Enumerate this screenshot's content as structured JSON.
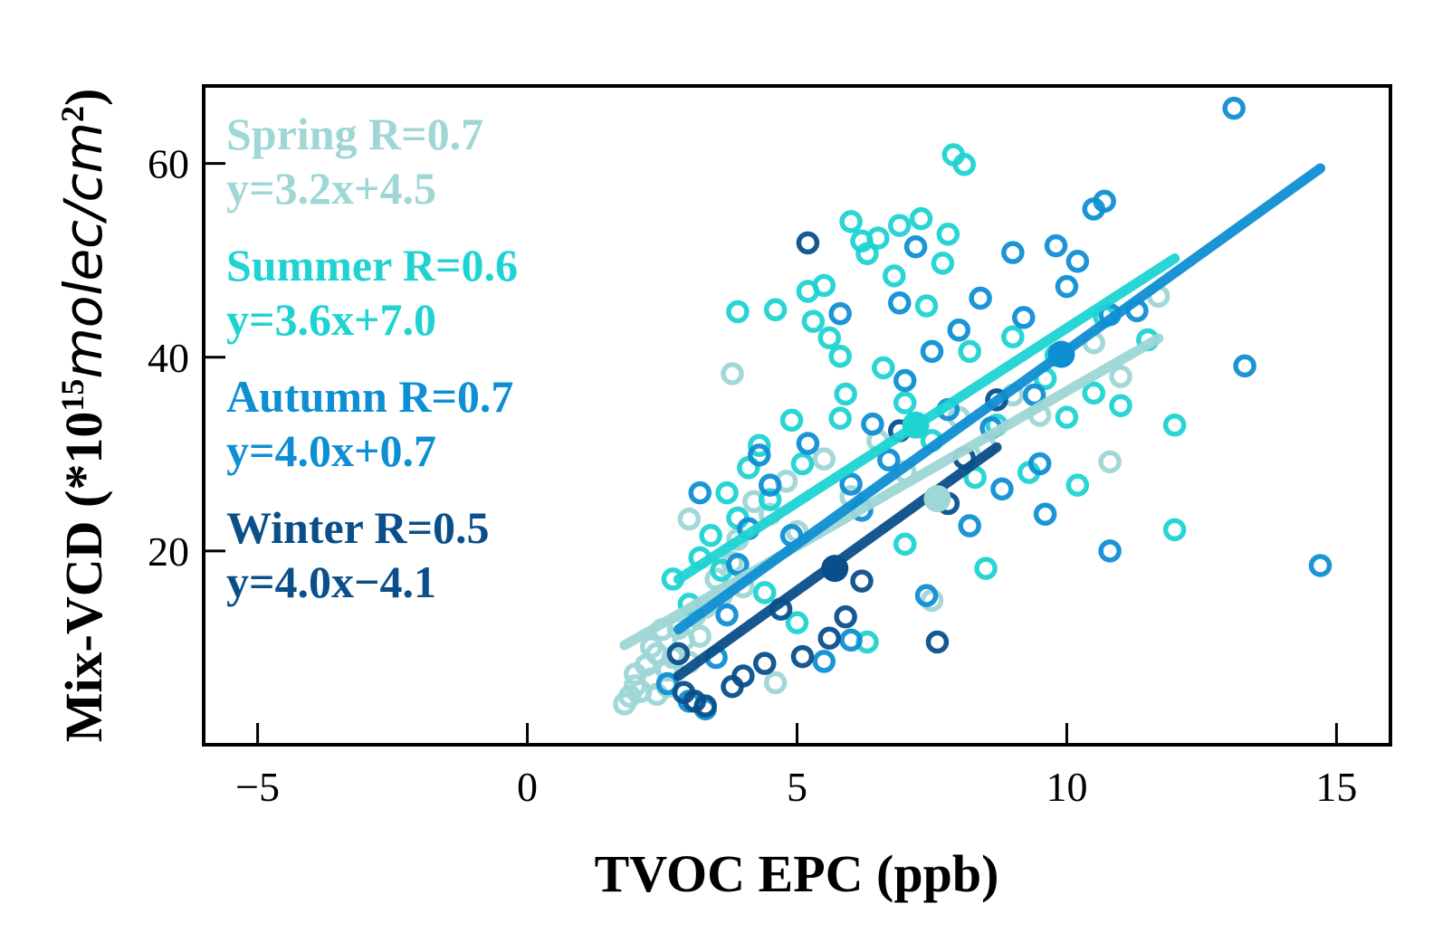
{
  "chart_data": {
    "type": "scatter",
    "title": "",
    "xlabel": "TVOC EPC (ppb)",
    "ylabel": {
      "prefix": "Mix-VCD (*10",
      "exponent": "15",
      "unit": "molec/cm",
      "unit_exponent": "2",
      "suffix": ")"
    },
    "xlim": [
      -6,
      16
    ],
    "ylim": [
      0,
      68
    ],
    "xticks": [
      -5,
      0,
      5,
      10,
      15
    ],
    "xtick_labels": [
      "−5",
      "0",
      "5",
      "10",
      "15"
    ],
    "yticks": [
      20,
      40,
      60
    ],
    "ytick_labels": [
      "20",
      "40",
      "60"
    ],
    "grid": false,
    "legend_position": "top-left",
    "series": [
      {
        "name": "Spring",
        "color": "#9fd6d6",
        "legend_line1": "Spring R=0.7",
        "legend_line2": "y=3.2x+4.5",
        "fit": {
          "slope": 3.2,
          "intercept": 4.5,
          "x_range": [
            1.8,
            11.7
          ]
        },
        "mean": [
          7.6,
          25.4
        ],
        "points": [
          [
            1.8,
            4.2
          ],
          [
            1.9,
            5.0
          ],
          [
            2.0,
            6.1
          ],
          [
            2.1,
            5.5
          ],
          [
            2.0,
            7.3
          ],
          [
            2.2,
            8.2
          ],
          [
            2.3,
            6.8
          ],
          [
            2.4,
            9.4
          ],
          [
            2.5,
            11.9
          ],
          [
            2.3,
            10.1
          ],
          [
            2.6,
            7.7
          ],
          [
            2.7,
            9.0
          ],
          [
            2.8,
            12.0
          ],
          [
            2.9,
            10.8
          ],
          [
            3.0,
            8.5
          ],
          [
            3.1,
            13.3
          ],
          [
            3.2,
            11.2
          ],
          [
            3.3,
            14.2
          ],
          [
            3.0,
            23.3
          ],
          [
            3.5,
            17.1
          ],
          [
            3.6,
            15.4
          ],
          [
            3.8,
            18.8
          ],
          [
            3.9,
            21.2
          ],
          [
            4.0,
            16.3
          ],
          [
            4.2,
            25.1
          ],
          [
            4.5,
            23.8
          ],
          [
            4.8,
            27.2
          ],
          [
            5.0,
            22.0
          ],
          [
            3.8,
            38.3
          ],
          [
            5.5,
            29.5
          ],
          [
            6.0,
            25.6
          ],
          [
            6.5,
            31.4
          ],
          [
            7.0,
            28.2
          ],
          [
            7.5,
            14.9
          ],
          [
            8.0,
            33.8
          ],
          [
            8.5,
            30.7
          ],
          [
            9.0,
            36.1
          ],
          [
            9.5,
            34.0
          ],
          [
            10.8,
            29.2
          ],
          [
            11.0,
            38.0
          ],
          [
            11.7,
            46.3
          ],
          [
            10.5,
            41.5
          ],
          [
            2.4,
            5.2
          ],
          [
            2.6,
            6.0
          ],
          [
            4.6,
            6.4
          ]
        ]
      },
      {
        "name": "Summer",
        "color": "#1fd3d3",
        "legend_line1": "Summer R=0.6",
        "legend_line2": "y=3.6x+7.0",
        "fit": {
          "slope": 3.6,
          "intercept": 7.0,
          "x_range": [
            2.8,
            12.0
          ]
        },
        "mean": [
          7.2,
          33.0
        ],
        "points": [
          [
            2.7,
            17.1
          ],
          [
            3.0,
            14.5
          ],
          [
            3.2,
            19.3
          ],
          [
            3.4,
            21.6
          ],
          [
            3.6,
            18.0
          ],
          [
            3.7,
            26.0
          ],
          [
            3.9,
            23.4
          ],
          [
            4.1,
            28.6
          ],
          [
            4.3,
            30.9
          ],
          [
            4.5,
            25.3
          ],
          [
            3.9,
            44.7
          ],
          [
            4.6,
            44.9
          ],
          [
            4.9,
            33.5
          ],
          [
            5.1,
            29.0
          ],
          [
            5.2,
            46.8
          ],
          [
            5.3,
            43.7
          ],
          [
            5.5,
            47.4
          ],
          [
            5.6,
            42.0
          ],
          [
            5.8,
            40.1
          ],
          [
            5.9,
            36.2
          ],
          [
            6.0,
            54.0
          ],
          [
            6.2,
            52.0
          ],
          [
            6.3,
            50.7
          ],
          [
            6.5,
            52.3
          ],
          [
            6.6,
            38.9
          ],
          [
            6.8,
            48.4
          ],
          [
            6.9,
            53.6
          ],
          [
            7.0,
            35.3
          ],
          [
            7.3,
            54.3
          ],
          [
            7.4,
            45.3
          ],
          [
            7.5,
            31.4
          ],
          [
            7.7,
            49.7
          ],
          [
            7.8,
            52.7
          ],
          [
            7.9,
            60.9
          ],
          [
            8.1,
            59.9
          ],
          [
            8.2,
            40.6
          ],
          [
            8.3,
            27.6
          ],
          [
            8.5,
            18.2
          ],
          [
            8.7,
            33.0
          ],
          [
            9.0,
            42.1
          ],
          [
            9.3,
            28.1
          ],
          [
            9.6,
            37.8
          ],
          [
            9.8,
            40.2
          ],
          [
            10.0,
            33.8
          ],
          [
            10.2,
            26.8
          ],
          [
            10.5,
            36.3
          ],
          [
            10.7,
            44.2
          ],
          [
            11.0,
            35.0
          ],
          [
            11.5,
            41.8
          ],
          [
            12.0,
            22.2
          ],
          [
            12.0,
            33.0
          ],
          [
            5.0,
            12.6
          ],
          [
            6.3,
            10.6
          ],
          [
            4.4,
            15.7
          ],
          [
            7.0,
            20.7
          ],
          [
            5.8,
            33.7
          ]
        ]
      },
      {
        "name": "Autumn",
        "color": "#0f8fd3",
        "legend_line1": "Autumn R=0.7",
        "legend_line2": "y=4.0x+0.7",
        "fit": {
          "slope": 4.0,
          "intercept": 0.7,
          "x_range": [
            2.8,
            14.7
          ]
        },
        "mean": [
          9.9,
          40.3
        ],
        "points": [
          [
            2.6,
            6.3
          ],
          [
            3.0,
            4.5
          ],
          [
            3.3,
            3.7
          ],
          [
            3.2,
            26.0
          ],
          [
            3.5,
            9.0
          ],
          [
            3.7,
            13.4
          ],
          [
            3.9,
            18.6
          ],
          [
            4.1,
            22.3
          ],
          [
            4.3,
            29.9
          ],
          [
            4.5,
            26.8
          ],
          [
            4.9,
            21.6
          ],
          [
            5.2,
            31.1
          ],
          [
            5.5,
            8.6
          ],
          [
            5.7,
            18.1
          ],
          [
            5.8,
            44.5
          ],
          [
            6.0,
            26.9
          ],
          [
            6.2,
            24.2
          ],
          [
            6.4,
            33.1
          ],
          [
            6.7,
            29.4
          ],
          [
            6.9,
            45.6
          ],
          [
            7.0,
            37.6
          ],
          [
            7.2,
            51.4
          ],
          [
            7.4,
            15.4
          ],
          [
            7.5,
            40.6
          ],
          [
            7.8,
            34.6
          ],
          [
            8.0,
            42.8
          ],
          [
            8.2,
            22.6
          ],
          [
            8.4,
            46.1
          ],
          [
            8.6,
            32.7
          ],
          [
            8.8,
            26.4
          ],
          [
            9.0,
            50.8
          ],
          [
            9.2,
            44.1
          ],
          [
            9.4,
            36.1
          ],
          [
            9.6,
            23.8
          ],
          [
            9.8,
            51.5
          ],
          [
            10.0,
            47.3
          ],
          [
            10.2,
            49.9
          ],
          [
            10.5,
            55.3
          ],
          [
            10.7,
            56.1
          ],
          [
            10.8,
            44.4
          ],
          [
            11.3,
            44.8
          ],
          [
            13.1,
            65.7
          ],
          [
            13.3,
            39.1
          ],
          [
            14.7,
            18.5
          ],
          [
            10.8,
            20.0
          ],
          [
            9.5,
            29.0
          ],
          [
            6.0,
            10.8
          ]
        ]
      },
      {
        "name": "Winter",
        "color": "#0a4f8a",
        "legend_line1": "Winter R=0.5",
        "legend_line2": "y=4.0x−4.1",
        "fit": {
          "slope": 4.0,
          "intercept": -4.1,
          "x_range": [
            2.8,
            8.7
          ]
        },
        "mean": [
          5.7,
          18.2
        ],
        "points": [
          [
            2.8,
            9.4
          ],
          [
            2.9,
            5.4
          ],
          [
            3.3,
            4.0
          ],
          [
            3.8,
            6.0
          ],
          [
            4.0,
            7.1
          ],
          [
            4.4,
            8.4
          ],
          [
            4.7,
            14.0
          ],
          [
            5.1,
            9.1
          ],
          [
            5.2,
            51.8
          ],
          [
            5.6,
            11.0
          ],
          [
            6.2,
            16.9
          ],
          [
            6.9,
            32.4
          ],
          [
            7.6,
            10.6
          ],
          [
            7.8,
            24.9
          ],
          [
            8.1,
            29.6
          ],
          [
            8.7,
            35.6
          ],
          [
            3.1,
            4.5
          ],
          [
            5.9,
            13.2
          ]
        ]
      }
    ]
  }
}
